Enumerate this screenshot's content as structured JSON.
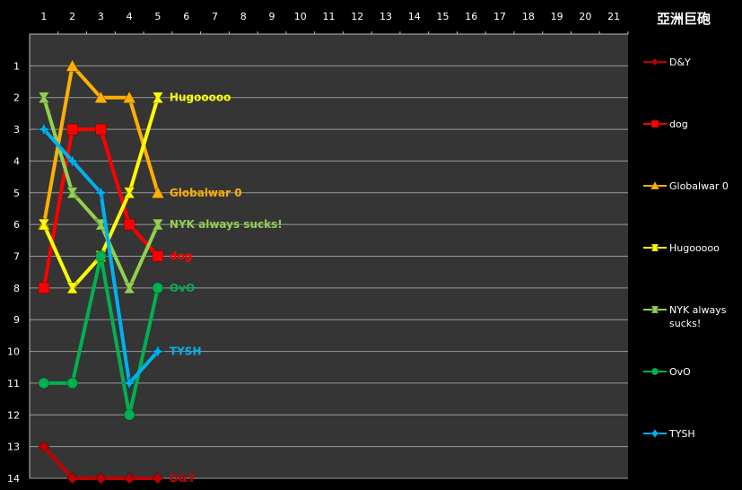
{
  "chart_data": {
    "type": "line",
    "title": "亞洲巨砲",
    "x": [
      1,
      2,
      3,
      4,
      5
    ],
    "xlim": [
      0.5,
      21.5
    ],
    "xticks": [
      1,
      2,
      3,
      4,
      5,
      6,
      7,
      8,
      9,
      10,
      11,
      12,
      13,
      14,
      15,
      16,
      17,
      18,
      19,
      20,
      21
    ],
    "x_axis_position": "top",
    "ylim": [
      0,
      14
    ],
    "y_reversed": true,
    "yticks": [
      1,
      2,
      3,
      4,
      5,
      6,
      7,
      8,
      9,
      10,
      11,
      12,
      13,
      14
    ],
    "grid": "horizontal",
    "legend": "right",
    "plot_background": "#353535",
    "series": [
      {
        "name": "D&Y",
        "legend_label": "D&Y",
        "end_label": "D&Y",
        "color": "#c00000",
        "marker": "diamond",
        "values": [
          13,
          14,
          14,
          14,
          14
        ]
      },
      {
        "name": "dog",
        "legend_label": "dog",
        "end_label": "dog",
        "color": "#ff0000",
        "marker": "square",
        "values": [
          8,
          3,
          3,
          6,
          7
        ]
      },
      {
        "name": "Globalwar 0",
        "legend_label": "Globalwar 0",
        "end_label": "Globalwar 0",
        "color": "#ffb000",
        "marker": "triangle",
        "values": [
          6,
          1,
          2,
          2,
          5
        ]
      },
      {
        "name": "Hugooooo",
        "legend_label": "Hugooooo",
        "end_label": "Hugooooo",
        "color": "#ffff00",
        "marker": "x-square",
        "values": [
          6,
          8,
          7,
          5,
          2
        ]
      },
      {
        "name": "NYK always sucks!",
        "legend_label": "NYK always sucks!",
        "end_label": "NYK always sucks!",
        "color": "#92d050",
        "marker": "x-square",
        "values": [
          2,
          5,
          6,
          8,
          6
        ]
      },
      {
        "name": "OvO",
        "legend_label": "OvO",
        "end_label": "OvO",
        "color": "#00b050",
        "marker": "circle",
        "values": [
          11,
          11,
          7,
          12,
          8
        ]
      },
      {
        "name": "TYSH",
        "legend_label": "TYSH",
        "end_label": "TYSH",
        "color": "#00b0f0",
        "marker": "star",
        "values": [
          3,
          4,
          5,
          11,
          10
        ]
      }
    ]
  }
}
